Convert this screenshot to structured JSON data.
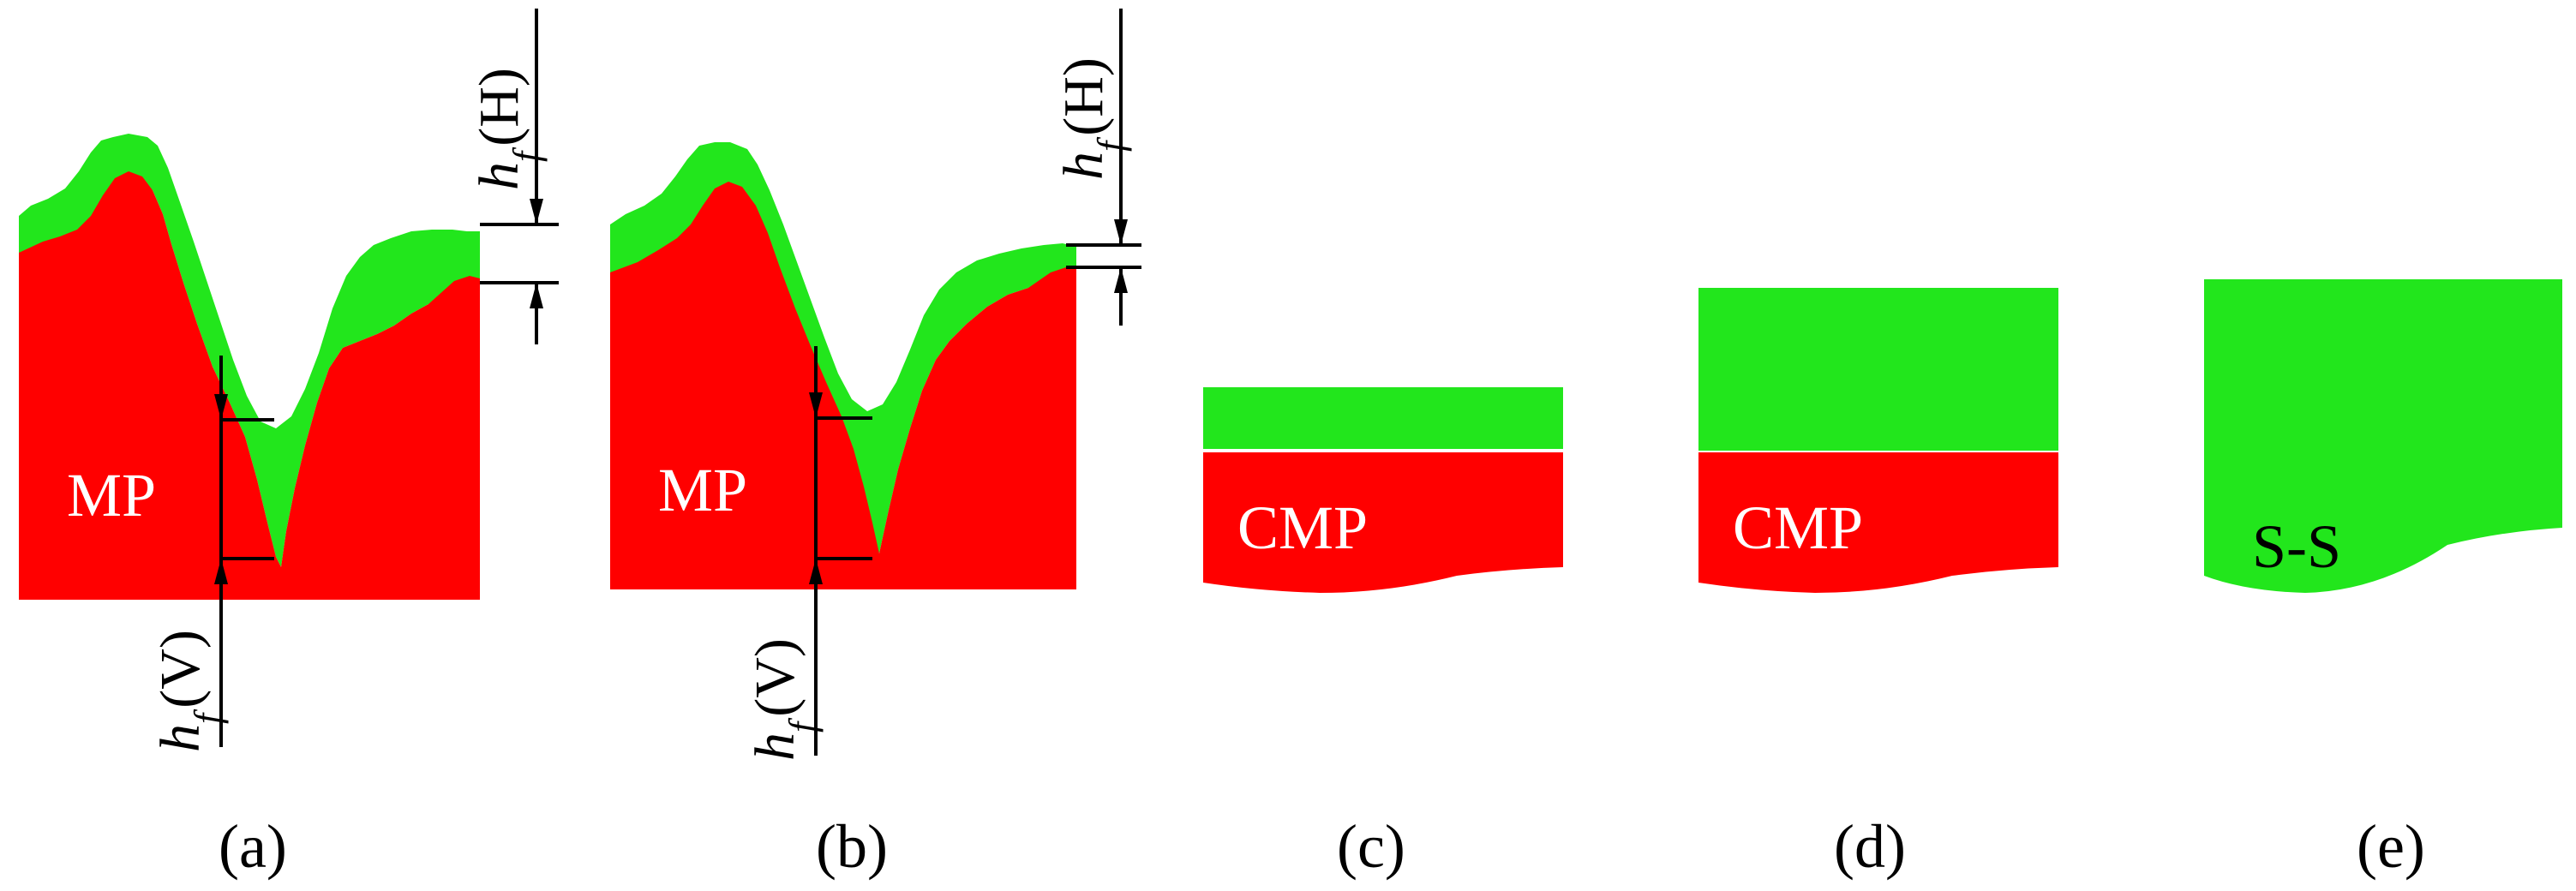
{
  "colors": {
    "deposit": "#22e61c",
    "substrate": "#ff0000",
    "annotation": "#000000",
    "background": "#ffffff"
  },
  "dimension": {
    "symbol": "h",
    "subscript": "f",
    "horizontal_suffix": "(H)",
    "vertical_suffix": "(V)"
  },
  "panels": [
    {
      "id": "a",
      "caption": "(a)",
      "substrate_label": "MP"
    },
    {
      "id": "b",
      "caption": "(b)",
      "substrate_label": "MP"
    },
    {
      "id": "c",
      "caption": "(c)",
      "substrate_label": "CMP"
    },
    {
      "id": "d",
      "caption": "(d)",
      "substrate_label": "CMP"
    },
    {
      "id": "e",
      "caption": "(e)",
      "substrate_label": "S-S"
    }
  ]
}
